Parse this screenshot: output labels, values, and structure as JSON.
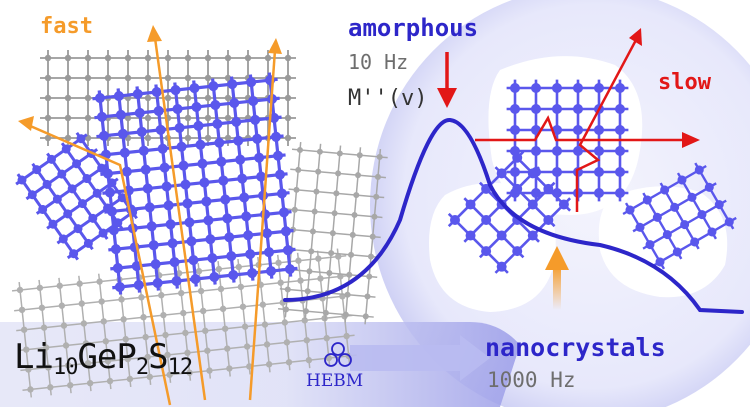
{
  "labels": {
    "fast": "fast",
    "amorphous": "amorphous",
    "freq_amorphous": "10 Hz",
    "modulus": "M''(v)",
    "slow": "slow",
    "nanocrystals": "nanocrystals",
    "freq_nano": "1000 Hz",
    "hebm": "HEBM"
  },
  "formula": {
    "li": "Li",
    "li_n": "10",
    "ge": "GeP",
    "p_n": "2",
    "s": "S",
    "s_n": "12"
  },
  "colors": {
    "blue": "#2d26c9",
    "lattice": "#5a57ec",
    "grey": "#8a8a8a",
    "orange": "#f59b2a",
    "red": "#e21717",
    "halo": "#d7d9f6",
    "text_grey": "#6e6e6e"
  },
  "icons": [
    "arrow-icon",
    "hebm-circles-icon"
  ]
}
